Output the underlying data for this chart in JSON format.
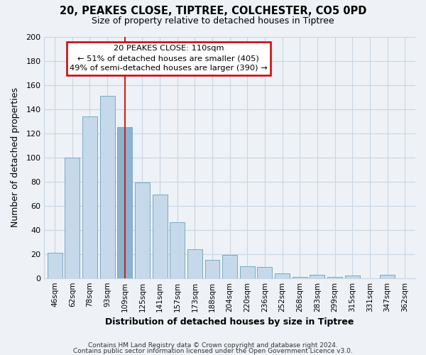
{
  "title": "20, PEAKES CLOSE, TIPTREE, COLCHESTER, CO5 0PD",
  "subtitle": "Size of property relative to detached houses in Tiptree",
  "xlabel": "Distribution of detached houses by size in Tiptree",
  "ylabel": "Number of detached properties",
  "categories": [
    "46sqm",
    "62sqm",
    "78sqm",
    "93sqm",
    "109sqm",
    "125sqm",
    "141sqm",
    "157sqm",
    "173sqm",
    "188sqm",
    "204sqm",
    "220sqm",
    "236sqm",
    "252sqm",
    "268sqm",
    "283sqm",
    "299sqm",
    "315sqm",
    "331sqm",
    "347sqm",
    "362sqm"
  ],
  "values": [
    21,
    100,
    134,
    151,
    125,
    79,
    69,
    46,
    24,
    15,
    19,
    10,
    9,
    4,
    1,
    3,
    1,
    2,
    0,
    3,
    0
  ],
  "bar_color_default": "#c5d9ea",
  "bar_color_highlight": "#8ab4cf",
  "bar_edge_color": "#7aaabf",
  "highlight_index": 4,
  "vline_color": "#cc2222",
  "annotation_title": "20 PEAKES CLOSE: 110sqm",
  "annotation_line1": "← 51% of detached houses are smaller (405)",
  "annotation_line2": "49% of semi-detached houses are larger (390) →",
  "annotation_box_color": "#ffffff",
  "annotation_box_edge": "#cc0000",
  "ylim": [
    0,
    200
  ],
  "yticks": [
    0,
    20,
    40,
    60,
    80,
    100,
    120,
    140,
    160,
    180,
    200
  ],
  "footer1": "Contains HM Land Registry data © Crown copyright and database right 2024.",
  "footer2": "Contains public sector information licensed under the Open Government Licence v3.0.",
  "bg_color": "#eef2f7",
  "plot_bg_color": "#eef2f7",
  "grid_color": "#c8d5e2"
}
